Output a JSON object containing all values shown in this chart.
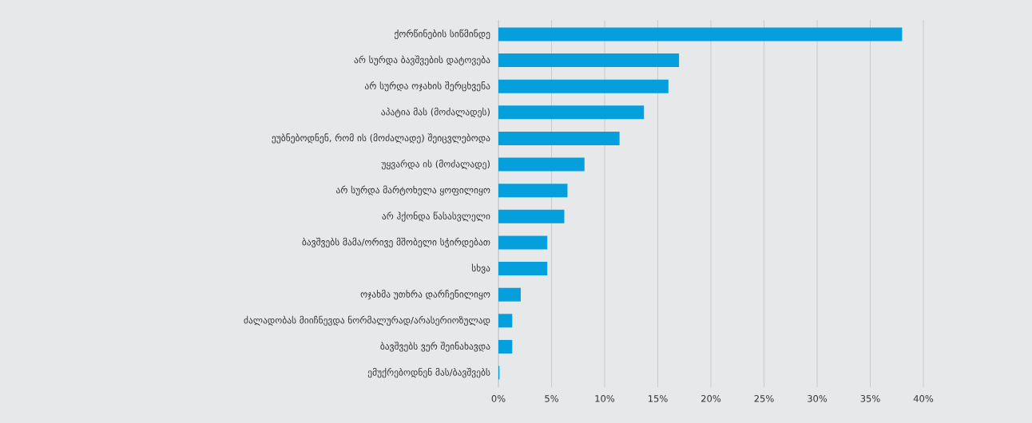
{
  "chart_data": {
    "type": "bar",
    "orientation": "horizontal",
    "categories": [
      "ქორწინების სიწმინდე",
      "არ სურდა ბავშვების დატოვება",
      "არ სურდა ოჯახის შერცხვენა",
      "აპატია მას (მოძალადეს)",
      "ეუბნებოდნენ, რომ ის (მოძალადე) შეიცვლებოდა",
      "უყვარდა ის (მოძალადე)",
      "არ სურდა მარტოხელა ყოფილიყო",
      "არ ჰქონდა წასასვლელი",
      "ბავშვებს მამა/ორივე მშობელი სჭირდებათ",
      "სხვა",
      "ოჯახმა უთხრა დარჩენილიყო",
      "ძალადობას მიიჩნევდა ნორმალურად/არასერიოზულად",
      "ბავშვებს ვერ შეინახავდა",
      "ემუქრებოდნენ მას/ბავშვებს"
    ],
    "values": [
      38.0,
      17.0,
      16.0,
      13.7,
      11.4,
      8.1,
      6.5,
      6.2,
      4.6,
      4.6,
      2.1,
      1.3,
      1.3,
      0.1
    ],
    "color": "#059fdd",
    "xlim": [
      0,
      40
    ],
    "xticks": [
      {
        "value": 0,
        "label": "0%"
      },
      {
        "value": 5,
        "label": "5%"
      },
      {
        "value": 10,
        "label": "10%"
      },
      {
        "value": 15,
        "label": "15%"
      },
      {
        "value": 20,
        "label": "20%"
      },
      {
        "value": 25,
        "label": "25%"
      },
      {
        "value": 30,
        "label": "30%"
      },
      {
        "value": 35,
        "label": "35%"
      },
      {
        "value": 40,
        "label": "40%"
      }
    ],
    "grid": "x"
  }
}
